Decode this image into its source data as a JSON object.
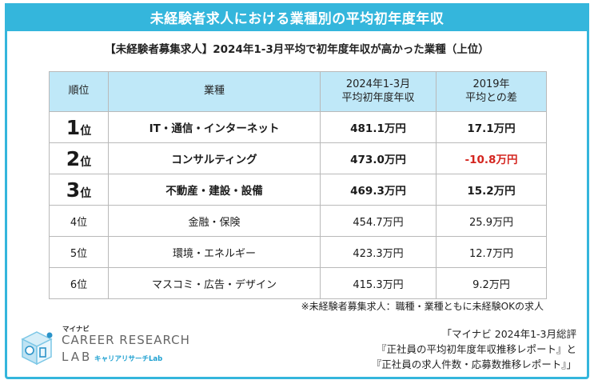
{
  "banner_title": "未経験者求人における業種別の平均初年度年収",
  "subtitle": "【未経験者募集求人】2024年1-3月平均で初年度年収が高かった業種（上位）",
  "table": {
    "headers": {
      "rank": "順位",
      "industry": "業種",
      "salary_line1": "2024年1-3月",
      "salary_line2": "平均初年度年収",
      "diff_line1": "2019年",
      "diff_line2": "平均との差"
    },
    "rows": [
      {
        "rank_num": "1",
        "rank_suffix": "位",
        "industry": "IT・通信・インターネット",
        "salary": "481.1万円",
        "diff": "17.1万円",
        "negative": false
      },
      {
        "rank_num": "2",
        "rank_suffix": "位",
        "industry": "コンサルティング",
        "salary": "473.0万円",
        "diff": "-10.8万円",
        "negative": true
      },
      {
        "rank_num": "3",
        "rank_suffix": "位",
        "industry": "不動産・建設・設備",
        "salary": "469.3万円",
        "diff": "15.2万円",
        "negative": false
      },
      {
        "rank_label": "4位",
        "industry": "金融・保険",
        "salary": "454.7万円",
        "diff": "25.9万円"
      },
      {
        "rank_label": "5位",
        "industry": "環境・エネルギー",
        "salary": "423.3万円",
        "diff": "12.7万円"
      },
      {
        "rank_label": "6位",
        "industry": "マスコミ・広告・デザイン",
        "salary": "415.3万円",
        "diff": "9.2万円"
      }
    ]
  },
  "footnote": "※未経験者募集求人：職種・業種ともに未経験OKの求人",
  "logo": {
    "top_text": "マイナビ",
    "line1": "CAREER RESEARCH",
    "line2": "LAB",
    "kana": "キャリアリサーチLab"
  },
  "source_lines": [
    "「マイナビ 2024年1-3月総評",
    "『正社員の平均初年度年収推移レポート』と",
    "『正社員の求人件数・応募数推移レポート』」"
  ],
  "colors": {
    "accent": "#34b6dc",
    "header_bg": "#bfe8f8",
    "negative": "#d4251f"
  }
}
